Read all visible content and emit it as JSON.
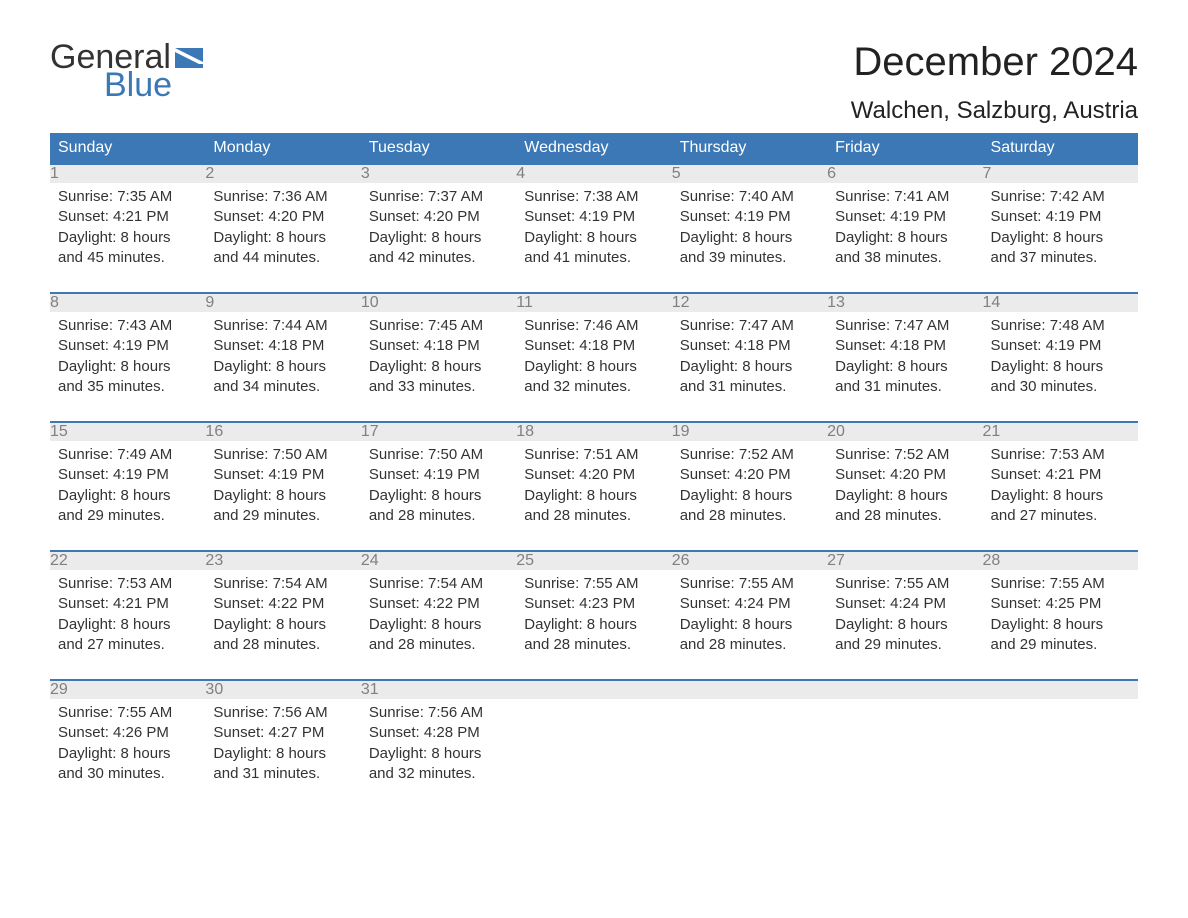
{
  "logo": {
    "word1": "General",
    "word2": "Blue",
    "brand_color": "#3b78b5"
  },
  "title": "December 2024",
  "location": "Walchen, Salzburg, Austria",
  "colors": {
    "header_bg": "#3b78b5",
    "header_text": "#ffffff",
    "daynum_bg": "#ebebeb",
    "daynum_text": "#808080",
    "body_text": "#333333",
    "rule": "#3b78b5"
  },
  "weekdays": [
    "Sunday",
    "Monday",
    "Tuesday",
    "Wednesday",
    "Thursday",
    "Friday",
    "Saturday"
  ],
  "weeks": [
    [
      {
        "n": "1",
        "sunrise": "Sunrise: 7:35 AM",
        "sunset": "Sunset: 4:21 PM",
        "daylight": "Daylight: 8 hours and 45 minutes."
      },
      {
        "n": "2",
        "sunrise": "Sunrise: 7:36 AM",
        "sunset": "Sunset: 4:20 PM",
        "daylight": "Daylight: 8 hours and 44 minutes."
      },
      {
        "n": "3",
        "sunrise": "Sunrise: 7:37 AM",
        "sunset": "Sunset: 4:20 PM",
        "daylight": "Daylight: 8 hours and 42 minutes."
      },
      {
        "n": "4",
        "sunrise": "Sunrise: 7:38 AM",
        "sunset": "Sunset: 4:19 PM",
        "daylight": "Daylight: 8 hours and 41 minutes."
      },
      {
        "n": "5",
        "sunrise": "Sunrise: 7:40 AM",
        "sunset": "Sunset: 4:19 PM",
        "daylight": "Daylight: 8 hours and 39 minutes."
      },
      {
        "n": "6",
        "sunrise": "Sunrise: 7:41 AM",
        "sunset": "Sunset: 4:19 PM",
        "daylight": "Daylight: 8 hours and 38 minutes."
      },
      {
        "n": "7",
        "sunrise": "Sunrise: 7:42 AM",
        "sunset": "Sunset: 4:19 PM",
        "daylight": "Daylight: 8 hours and 37 minutes."
      }
    ],
    [
      {
        "n": "8",
        "sunrise": "Sunrise: 7:43 AM",
        "sunset": "Sunset: 4:19 PM",
        "daylight": "Daylight: 8 hours and 35 minutes."
      },
      {
        "n": "9",
        "sunrise": "Sunrise: 7:44 AM",
        "sunset": "Sunset: 4:18 PM",
        "daylight": "Daylight: 8 hours and 34 minutes."
      },
      {
        "n": "10",
        "sunrise": "Sunrise: 7:45 AM",
        "sunset": "Sunset: 4:18 PM",
        "daylight": "Daylight: 8 hours and 33 minutes."
      },
      {
        "n": "11",
        "sunrise": "Sunrise: 7:46 AM",
        "sunset": "Sunset: 4:18 PM",
        "daylight": "Daylight: 8 hours and 32 minutes."
      },
      {
        "n": "12",
        "sunrise": "Sunrise: 7:47 AM",
        "sunset": "Sunset: 4:18 PM",
        "daylight": "Daylight: 8 hours and 31 minutes."
      },
      {
        "n": "13",
        "sunrise": "Sunrise: 7:47 AM",
        "sunset": "Sunset: 4:18 PM",
        "daylight": "Daylight: 8 hours and 31 minutes."
      },
      {
        "n": "14",
        "sunrise": "Sunrise: 7:48 AM",
        "sunset": "Sunset: 4:19 PM",
        "daylight": "Daylight: 8 hours and 30 minutes."
      }
    ],
    [
      {
        "n": "15",
        "sunrise": "Sunrise: 7:49 AM",
        "sunset": "Sunset: 4:19 PM",
        "daylight": "Daylight: 8 hours and 29 minutes."
      },
      {
        "n": "16",
        "sunrise": "Sunrise: 7:50 AM",
        "sunset": "Sunset: 4:19 PM",
        "daylight": "Daylight: 8 hours and 29 minutes."
      },
      {
        "n": "17",
        "sunrise": "Sunrise: 7:50 AM",
        "sunset": "Sunset: 4:19 PM",
        "daylight": "Daylight: 8 hours and 28 minutes."
      },
      {
        "n": "18",
        "sunrise": "Sunrise: 7:51 AM",
        "sunset": "Sunset: 4:20 PM",
        "daylight": "Daylight: 8 hours and 28 minutes."
      },
      {
        "n": "19",
        "sunrise": "Sunrise: 7:52 AM",
        "sunset": "Sunset: 4:20 PM",
        "daylight": "Daylight: 8 hours and 28 minutes."
      },
      {
        "n": "20",
        "sunrise": "Sunrise: 7:52 AM",
        "sunset": "Sunset: 4:20 PM",
        "daylight": "Daylight: 8 hours and 28 minutes."
      },
      {
        "n": "21",
        "sunrise": "Sunrise: 7:53 AM",
        "sunset": "Sunset: 4:21 PM",
        "daylight": "Daylight: 8 hours and 27 minutes."
      }
    ],
    [
      {
        "n": "22",
        "sunrise": "Sunrise: 7:53 AM",
        "sunset": "Sunset: 4:21 PM",
        "daylight": "Daylight: 8 hours and 27 minutes."
      },
      {
        "n": "23",
        "sunrise": "Sunrise: 7:54 AM",
        "sunset": "Sunset: 4:22 PM",
        "daylight": "Daylight: 8 hours and 28 minutes."
      },
      {
        "n": "24",
        "sunrise": "Sunrise: 7:54 AM",
        "sunset": "Sunset: 4:22 PM",
        "daylight": "Daylight: 8 hours and 28 minutes."
      },
      {
        "n": "25",
        "sunrise": "Sunrise: 7:55 AM",
        "sunset": "Sunset: 4:23 PM",
        "daylight": "Daylight: 8 hours and 28 minutes."
      },
      {
        "n": "26",
        "sunrise": "Sunrise: 7:55 AM",
        "sunset": "Sunset: 4:24 PM",
        "daylight": "Daylight: 8 hours and 28 minutes."
      },
      {
        "n": "27",
        "sunrise": "Sunrise: 7:55 AM",
        "sunset": "Sunset: 4:24 PM",
        "daylight": "Daylight: 8 hours and 29 minutes."
      },
      {
        "n": "28",
        "sunrise": "Sunrise: 7:55 AM",
        "sunset": "Sunset: 4:25 PM",
        "daylight": "Daylight: 8 hours and 29 minutes."
      }
    ],
    [
      {
        "n": "29",
        "sunrise": "Sunrise: 7:55 AM",
        "sunset": "Sunset: 4:26 PM",
        "daylight": "Daylight: 8 hours and 30 minutes."
      },
      {
        "n": "30",
        "sunrise": "Sunrise: 7:56 AM",
        "sunset": "Sunset: 4:27 PM",
        "daylight": "Daylight: 8 hours and 31 minutes."
      },
      {
        "n": "31",
        "sunrise": "Sunrise: 7:56 AM",
        "sunset": "Sunset: 4:28 PM",
        "daylight": "Daylight: 8 hours and 32 minutes."
      },
      null,
      null,
      null,
      null
    ]
  ]
}
